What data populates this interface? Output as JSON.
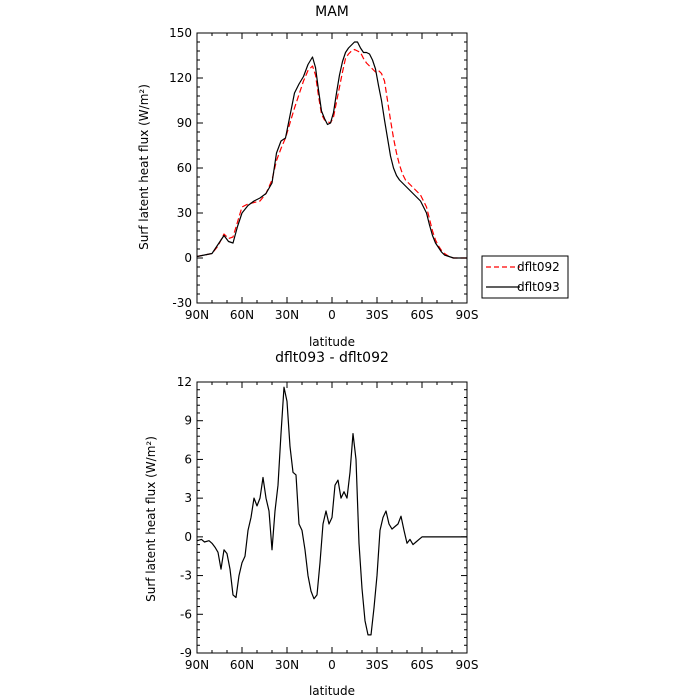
{
  "chart_data": [
    {
      "type": "line",
      "title": "MAM",
      "xlabel": "latitude",
      "ylabel": "Surf latent heat flux (W/m²)",
      "xlim": [
        90,
        -90
      ],
      "ylim": [
        -30,
        150
      ],
      "x_ticks": [
        90,
        60,
        30,
        0,
        -30,
        -60,
        -90
      ],
      "x_tick_labels": [
        "90N",
        "60N",
        "30N",
        "0",
        "30S",
        "60S",
        "90S"
      ],
      "y_ticks": [
        -30,
        0,
        30,
        60,
        90,
        120,
        150
      ],
      "y_tick_labels": [
        "-30",
        "0",
        "30",
        "60",
        "90",
        "120",
        "150"
      ],
      "legend_position": "right",
      "series": [
        {
          "name": "dflt092",
          "color": "#ff0000",
          "dash": "dashed",
          "x": [
            90,
            85,
            80,
            76,
            72,
            69,
            66,
            63,
            60,
            56,
            52,
            48,
            44,
            40,
            37,
            34,
            31,
            28,
            25,
            22,
            19,
            16,
            13,
            11,
            9,
            7,
            5,
            3,
            1,
            -1,
            -3,
            -5,
            -7,
            -9,
            -11,
            -13,
            -15,
            -17,
            -19,
            -21,
            -23,
            -25,
            -27,
            -29,
            -31,
            -33,
            -35,
            -37,
            -39,
            -41,
            -43,
            -45,
            -47,
            -49,
            -51,
            -53,
            -55,
            -57,
            -59,
            -61,
            -63,
            -65,
            -67,
            -69,
            -71,
            -73,
            -75,
            -78,
            -81,
            -84,
            -87,
            -90
          ],
          "y": [
            1,
            2,
            3,
            8,
            16,
            13,
            14,
            24,
            34,
            36,
            37,
            38,
            43,
            52,
            65,
            73,
            80,
            90,
            100,
            109,
            118,
            125,
            128,
            122,
            108,
            96,
            92,
            91,
            90,
            94,
            104,
            114,
            124,
            133,
            136,
            138,
            139,
            138,
            137,
            133,
            130,
            128,
            126,
            124,
            125,
            123,
            118,
            105,
            92,
            80,
            70,
            62,
            56,
            52,
            50,
            48,
            46,
            44,
            42,
            38,
            34,
            26,
            18,
            12,
            8,
            5,
            3,
            1,
            0,
            0,
            0,
            0
          ]
        },
        {
          "name": "dflt093",
          "color": "#000000",
          "dash": "solid",
          "x": [
            90,
            85,
            80,
            76,
            72,
            69,
            66,
            63,
            60,
            56,
            52,
            48,
            44,
            40,
            37,
            34,
            31,
            28,
            25,
            22,
            19,
            16,
            13,
            11,
            9,
            7,
            5,
            3,
            1,
            -1,
            -3,
            -5,
            -7,
            -9,
            -11,
            -13,
            -15,
            -17,
            -19,
            -21,
            -23,
            -25,
            -27,
            -29,
            -31,
            -33,
            -35,
            -37,
            -39,
            -41,
            -43,
            -45,
            -47,
            -49,
            -51,
            -53,
            -55,
            -57,
            -59,
            -61,
            -63,
            -65,
            -67,
            -69,
            -71,
            -73,
            -75,
            -78,
            -81,
            -84,
            -87,
            -90
          ],
          "y": [
            1,
            2,
            3,
            9,
            15,
            11,
            10,
            21,
            30,
            35,
            38,
            40,
            43,
            50,
            70,
            78,
            80,
            95,
            110,
            116,
            121,
            129,
            134,
            127,
            112,
            98,
            93,
            89,
            90,
            97,
            110,
            122,
            131,
            137,
            140,
            142,
            144,
            144,
            140,
            137,
            137,
            136,
            132,
            126,
            115,
            105,
            92,
            80,
            68,
            60,
            55,
            52,
            50,
            48,
            46,
            44,
            42,
            40,
            38,
            34,
            30,
            22,
            15,
            10,
            7,
            4,
            2,
            1,
            0,
            0,
            0,
            0
          ]
        }
      ]
    },
    {
      "type": "line",
      "title": "dflt093 - dflt092",
      "xlabel": "latitude",
      "ylabel": "Surf latent heat flux (W/m²)",
      "xlim": [
        90,
        -90
      ],
      "ylim": [
        -9,
        12
      ],
      "x_ticks": [
        90,
        60,
        30,
        0,
        -30,
        -60,
        -90
      ],
      "x_tick_labels": [
        "90N",
        "60N",
        "30N",
        "0",
        "30S",
        "60S",
        "90S"
      ],
      "y_ticks": [
        -9,
        -6,
        -3,
        0,
        3,
        6,
        9,
        12
      ],
      "y_tick_labels": [
        "-9",
        "-6",
        "-3",
        "0",
        "3",
        "6",
        "9",
        "12"
      ],
      "series": [
        {
          "name": "",
          "color": "#000000",
          "dash": "solid",
          "x": [
            90,
            87,
            85,
            82,
            80,
            78,
            76,
            74,
            72,
            70,
            68,
            66,
            64,
            62,
            60,
            58,
            56,
            54,
            52,
            50,
            48,
            46,
            44,
            42,
            40,
            38,
            36,
            34,
            32,
            30,
            28,
            26,
            24,
            22,
            20,
            18,
            16,
            14,
            12,
            10,
            8,
            6,
            4,
            2,
            0,
            -2,
            -4,
            -6,
            -8,
            -10,
            -12,
            -14,
            -16,
            -18,
            -20,
            -22,
            -24,
            -26,
            -28,
            -30,
            -32,
            -34,
            -36,
            -38,
            -40,
            -42,
            -44,
            -46,
            -48,
            -50,
            -52,
            -54,
            -56,
            -58,
            -60,
            -62,
            -64,
            -66,
            -68,
            -70,
            -72,
            -74,
            -76,
            -78,
            -80,
            -82,
            -84,
            -86,
            -88,
            -90
          ],
          "y": [
            -0.3,
            -0.2,
            -0.4,
            -0.3,
            -0.5,
            -0.8,
            -1.2,
            -2.5,
            -1.0,
            -1.3,
            -2.5,
            -4.5,
            -4.7,
            -3.0,
            -2.0,
            -1.5,
            0.5,
            1.5,
            3.0,
            2.4,
            3.0,
            4.6,
            3.0,
            2.0,
            -1.0,
            2.0,
            4.0,
            8.0,
            11.6,
            10.5,
            7.0,
            5.0,
            4.8,
            1.0,
            0.5,
            -1.0,
            -3.0,
            -4.2,
            -4.8,
            -4.5,
            -2.0,
            1.0,
            2.0,
            1.0,
            1.5,
            4.0,
            4.4,
            3.0,
            3.5,
            3.0,
            5.0,
            8.0,
            6.0,
            -0.5,
            -4.0,
            -6.5,
            -7.6,
            -7.6,
            -5.5,
            -3.0,
            0.5,
            1.5,
            2.0,
            1.0,
            0.6,
            0.8,
            1.0,
            1.6,
            0.5,
            -0.5,
            -0.2,
            -0.6,
            -0.4,
            -0.2,
            0.0,
            0.0,
            0.0,
            0.0,
            0.0,
            0.0,
            0.0,
            0.0,
            0.0,
            0.0,
            0.0,
            0.0,
            0.0,
            0.0,
            0.0,
            0.0
          ]
        }
      ]
    }
  ]
}
